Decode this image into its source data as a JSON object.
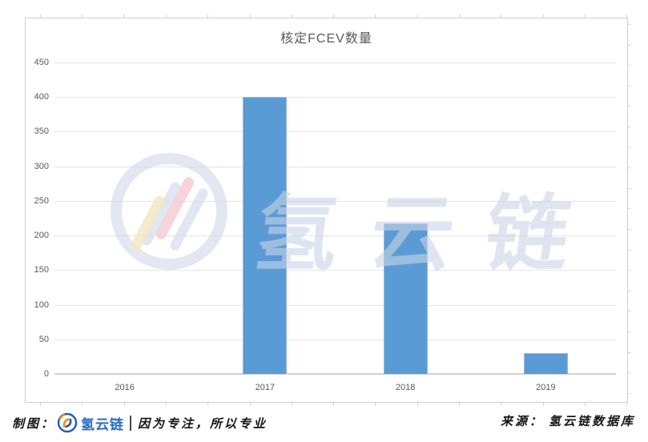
{
  "chart_data": {
    "type": "bar",
    "title": "核定FCEV数量",
    "categories": [
      "2016",
      "2017",
      "2018",
      "2019"
    ],
    "values": [
      0,
      400,
      217,
      30
    ],
    "xlabel": "",
    "ylabel": "",
    "ylim": [
      0,
      450
    ],
    "ytick_step": 50,
    "grid": true,
    "legend": "none",
    "bar_color": "#5b9bd5"
  },
  "watermark": {
    "text": "氢云链",
    "logo": "hydrogen-cloud-chain-ring-logo"
  },
  "footer": {
    "maker_label": "制图：",
    "brand": "氢云链",
    "divider": "|",
    "slogan": "因为专注，所以专业",
    "source_label": "来源：",
    "source_value": "氢云链数据库"
  },
  "colors": {
    "bar": "#5b9bd5",
    "bar_edge": "#8fbade",
    "gridline": "#e4e4e4",
    "axis_text": "#595959",
    "frame_border": "#c9cdd2",
    "brand_blue": "#2a6cbf",
    "logo_orange": "#f08c1e",
    "watermark_tint": "#cad3e6"
  }
}
